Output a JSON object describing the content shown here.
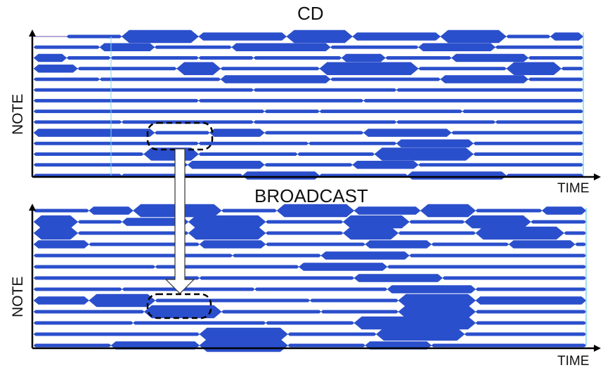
{
  "panels": [
    {
      "title": "CD",
      "ylabel": "NOTE",
      "xlabel": "TIME",
      "tracks": [
        [
          [
            0.06,
            0.16,
            1
          ],
          [
            0.16,
            0.3,
            3
          ],
          [
            0.3,
            0.46,
            2
          ],
          [
            0.46,
            0.58,
            3
          ],
          [
            0.58,
            0.74,
            2
          ],
          [
            0.74,
            0.86,
            3
          ],
          [
            0.86,
            0.94,
            1
          ],
          [
            0.94,
            1.0,
            2
          ]
        ],
        [
          [
            0.0,
            0.12,
            1
          ],
          [
            0.12,
            0.22,
            2
          ],
          [
            0.22,
            0.36,
            1
          ],
          [
            0.36,
            0.54,
            2
          ],
          [
            0.54,
            0.7,
            1
          ],
          [
            0.7,
            0.84,
            2
          ],
          [
            0.84,
            1.0,
            1
          ]
        ],
        [
          [
            0.0,
            0.06,
            2
          ],
          [
            0.06,
            0.14,
            1
          ],
          [
            0.14,
            0.3,
            1
          ],
          [
            0.3,
            0.4,
            1
          ],
          [
            0.4,
            0.56,
            1
          ],
          [
            0.56,
            0.64,
            2
          ],
          [
            0.64,
            0.76,
            1
          ],
          [
            0.76,
            0.9,
            2
          ],
          [
            0.9,
            1.0,
            1
          ]
        ],
        [
          [
            0.0,
            0.08,
            2
          ],
          [
            0.08,
            0.26,
            1
          ],
          [
            0.26,
            0.34,
            3
          ],
          [
            0.34,
            0.52,
            1
          ],
          [
            0.52,
            0.7,
            3
          ],
          [
            0.7,
            0.86,
            1
          ],
          [
            0.86,
            0.96,
            3
          ],
          [
            0.96,
            1.0,
            1
          ]
        ],
        [
          [
            0.0,
            0.12,
            1
          ],
          [
            0.12,
            0.34,
            1
          ],
          [
            0.34,
            0.54,
            2
          ],
          [
            0.54,
            0.74,
            1
          ],
          [
            0.74,
            0.9,
            2
          ],
          [
            0.9,
            1.0,
            1
          ]
        ],
        [
          [
            0.0,
            0.4,
            1
          ],
          [
            0.4,
            0.66,
            1
          ],
          [
            0.66,
            1.0,
            1
          ]
        ],
        [
          [
            0.0,
            0.3,
            1
          ],
          [
            0.3,
            0.6,
            1
          ],
          [
            0.6,
            1.0,
            1
          ]
        ],
        [
          [
            0.0,
            0.42,
            1
          ],
          [
            0.42,
            0.52,
            1
          ],
          [
            0.52,
            0.78,
            1
          ],
          [
            0.78,
            1.0,
            1
          ]
        ],
        [
          [
            0.0,
            0.16,
            1
          ],
          [
            0.16,
            0.4,
            1
          ],
          [
            0.4,
            0.66,
            1
          ],
          [
            0.66,
            0.84,
            1
          ],
          [
            0.84,
            1.0,
            1
          ]
        ],
        [
          [
            0.0,
            0.22,
            2
          ],
          [
            0.22,
            0.32,
            1
          ],
          [
            0.32,
            0.42,
            2
          ],
          [
            0.42,
            0.6,
            1
          ],
          [
            0.6,
            0.76,
            2
          ],
          [
            0.76,
            1.0,
            1
          ]
        ],
        [
          [
            0.0,
            0.3,
            1
          ],
          [
            0.3,
            0.5,
            1
          ],
          [
            0.5,
            0.66,
            1
          ],
          [
            0.66,
            0.8,
            2
          ],
          [
            0.8,
            1.0,
            1
          ]
        ],
        [
          [
            0.0,
            0.2,
            1
          ],
          [
            0.2,
            0.3,
            3
          ],
          [
            0.3,
            0.48,
            1
          ],
          [
            0.48,
            0.62,
            1
          ],
          [
            0.62,
            0.8,
            3
          ],
          [
            0.8,
            1.0,
            1
          ]
        ],
        [
          [
            0.0,
            0.28,
            1
          ],
          [
            0.28,
            0.42,
            2
          ],
          [
            0.42,
            0.58,
            1
          ],
          [
            0.58,
            0.7,
            2
          ],
          [
            0.7,
            1.0,
            1
          ]
        ],
        [
          [
            0.0,
            0.16,
            1
          ],
          [
            0.16,
            0.38,
            1
          ],
          [
            0.38,
            0.52,
            2
          ],
          [
            0.52,
            0.68,
            1
          ],
          [
            0.68,
            0.86,
            2
          ],
          [
            0.86,
            1.0,
            1
          ]
        ]
      ]
    },
    {
      "title": "BROADCAST",
      "ylabel": "NOTE",
      "xlabel": "TIME",
      "tracks": [
        [
          [
            0.0,
            0.1,
            1
          ],
          [
            0.1,
            0.18,
            2
          ],
          [
            0.18,
            0.34,
            3
          ],
          [
            0.34,
            0.44,
            1
          ],
          [
            0.44,
            0.58,
            3
          ],
          [
            0.58,
            0.7,
            2
          ],
          [
            0.7,
            0.8,
            3
          ],
          [
            0.8,
            0.92,
            1
          ],
          [
            0.92,
            1.0,
            2
          ]
        ],
        [
          [
            0.0,
            0.08,
            3
          ],
          [
            0.08,
            0.16,
            1
          ],
          [
            0.16,
            0.28,
            2
          ],
          [
            0.28,
            0.42,
            3
          ],
          [
            0.42,
            0.56,
            1
          ],
          [
            0.56,
            0.68,
            3
          ],
          [
            0.68,
            0.78,
            1
          ],
          [
            0.78,
            0.9,
            3
          ],
          [
            0.9,
            1.0,
            1
          ]
        ],
        [
          [
            0.0,
            0.08,
            3
          ],
          [
            0.08,
            0.28,
            1
          ],
          [
            0.28,
            0.42,
            3
          ],
          [
            0.42,
            0.56,
            1
          ],
          [
            0.56,
            0.66,
            3
          ],
          [
            0.66,
            0.8,
            1
          ],
          [
            0.8,
            0.96,
            3
          ],
          [
            0.96,
            1.0,
            1
          ]
        ],
        [
          [
            0.0,
            0.1,
            2
          ],
          [
            0.1,
            0.3,
            1
          ],
          [
            0.3,
            0.42,
            2
          ],
          [
            0.42,
            0.6,
            1
          ],
          [
            0.6,
            0.72,
            2
          ],
          [
            0.72,
            0.86,
            1
          ],
          [
            0.86,
            0.98,
            2
          ],
          [
            0.98,
            1.0,
            1
          ]
        ],
        [
          [
            0.0,
            0.36,
            1
          ],
          [
            0.36,
            0.52,
            1
          ],
          [
            0.52,
            0.68,
            2
          ],
          [
            0.68,
            1.0,
            1
          ]
        ],
        [
          [
            0.0,
            0.22,
            1
          ],
          [
            0.22,
            0.48,
            1
          ],
          [
            0.48,
            0.64,
            2
          ],
          [
            0.64,
            1.0,
            1
          ]
        ],
        [
          [
            0.0,
            0.3,
            1
          ],
          [
            0.3,
            0.58,
            1
          ],
          [
            0.58,
            0.74,
            2
          ],
          [
            0.74,
            1.0,
            1
          ]
        ],
        [
          [
            0.0,
            0.16,
            1
          ],
          [
            0.16,
            0.4,
            1
          ],
          [
            0.4,
            0.64,
            1
          ],
          [
            0.64,
            0.8,
            2
          ],
          [
            0.8,
            1.0,
            1
          ]
        ],
        [
          [
            0.0,
            0.1,
            2
          ],
          [
            0.1,
            0.22,
            3
          ],
          [
            0.22,
            0.5,
            1
          ],
          [
            0.5,
            0.66,
            1
          ],
          [
            0.66,
            0.8,
            3
          ],
          [
            0.8,
            1.0,
            2
          ]
        ],
        [
          [
            0.0,
            0.2,
            1
          ],
          [
            0.2,
            0.34,
            3
          ],
          [
            0.34,
            0.52,
            1
          ],
          [
            0.52,
            0.66,
            1
          ],
          [
            0.66,
            0.8,
            3
          ],
          [
            0.8,
            1.0,
            1
          ]
        ],
        [
          [
            0.0,
            0.18,
            1
          ],
          [
            0.18,
            0.42,
            1
          ],
          [
            0.42,
            0.58,
            1
          ],
          [
            0.58,
            0.8,
            3
          ],
          [
            0.8,
            1.0,
            1
          ]
        ],
        [
          [
            0.0,
            0.3,
            1
          ],
          [
            0.3,
            0.46,
            3
          ],
          [
            0.46,
            0.62,
            1
          ],
          [
            0.62,
            0.78,
            3
          ],
          [
            0.78,
            1.0,
            1
          ]
        ],
        [
          [
            0.0,
            0.14,
            1
          ],
          [
            0.14,
            0.3,
            2
          ],
          [
            0.3,
            0.46,
            3
          ],
          [
            0.46,
            0.6,
            1
          ],
          [
            0.6,
            0.72,
            2
          ],
          [
            0.72,
            1.0,
            1
          ]
        ]
      ]
    }
  ],
  "colors": {
    "note_fill": "#2a4fcc",
    "track_line": "#6a52b0",
    "axis": "#000000",
    "highlight": "#000000"
  },
  "icons": {
    "annotation": "dashed-rounded-box",
    "link": "hollow-down-arrow"
  }
}
